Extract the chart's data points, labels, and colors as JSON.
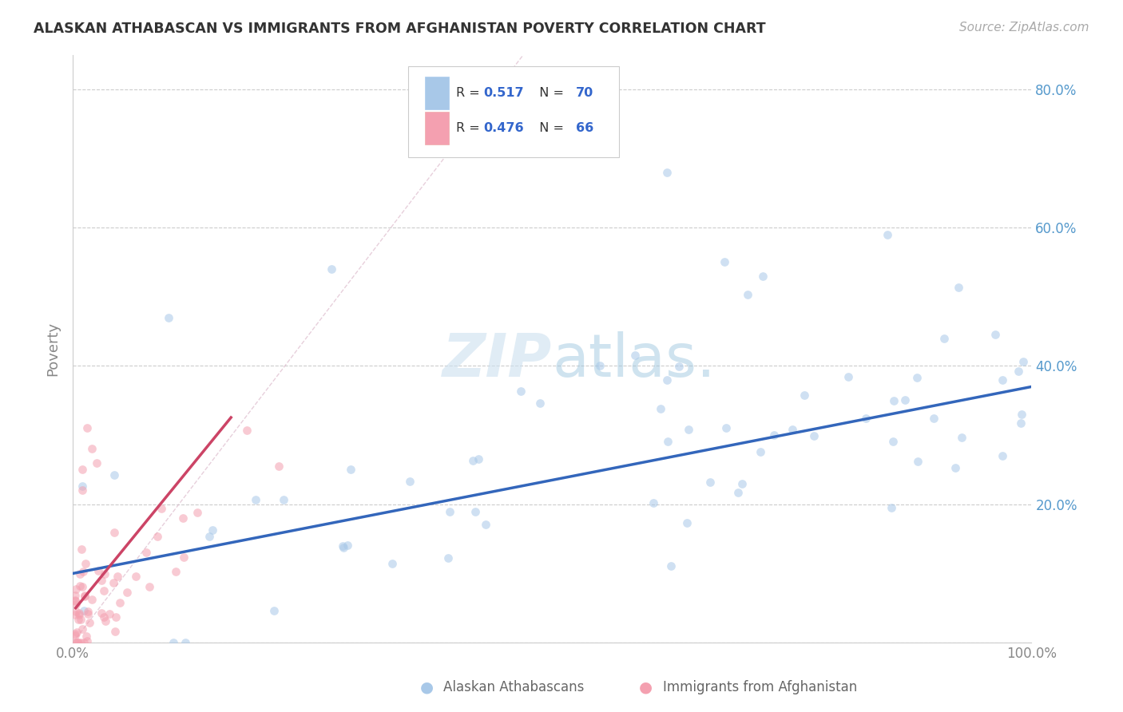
{
  "title": "ALASKAN ATHABASCAN VS IMMIGRANTS FROM AFGHANISTAN POVERTY CORRELATION CHART",
  "source": "Source: ZipAtlas.com",
  "ylabel": "Poverty",
  "xlim": [
    0,
    1
  ],
  "ylim": [
    0,
    0.85
  ],
  "ytick_vals": [
    0.0,
    0.2,
    0.4,
    0.6,
    0.8
  ],
  "yticklabels": [
    "",
    "20.0%",
    "40.0%",
    "60.0%",
    "80.0%"
  ],
  "background_color": "#ffffff",
  "blue_color": "#a8c8e8",
  "pink_color": "#f4a0b0",
  "blue_line_color": "#3366bb",
  "pink_line_color": "#cc4466",
  "pink_dashed_color": "#ddaaaa",
  "tick_label_color": "#5599cc",
  "dot_size": 60,
  "dot_alpha": 0.55,
  "legend_r1": "0.517",
  "legend_n1": "70",
  "legend_r2": "0.476",
  "legend_n2": "66"
}
